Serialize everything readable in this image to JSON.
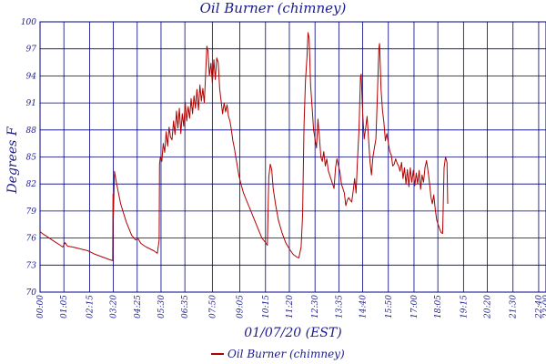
{
  "colors": {
    "line": "#b00000",
    "grid": "#000080",
    "text": "#1a1a8c"
  },
  "chart_data": {
    "type": "line",
    "title": "Oil Burner (chimney)",
    "xlabel": "01/07/20 (EST)",
    "ylabel": "Degrees F",
    "x_unit": "minutes",
    "xlim": [
      0,
      1380
    ],
    "ylim": [
      70,
      100
    ],
    "y_ticks": [
      {
        "value": 70,
        "label": "70"
      },
      {
        "value": 73,
        "label": "73"
      },
      {
        "value": 76,
        "label": "76"
      },
      {
        "value": 79,
        "label": "79"
      },
      {
        "value": 82,
        "label": "82"
      },
      {
        "value": 85,
        "label": "85"
      },
      {
        "value": 88,
        "label": "88"
      },
      {
        "value": 91,
        "label": "91"
      },
      {
        "value": 94,
        "label": "94"
      },
      {
        "value": 97,
        "label": "97"
      },
      {
        "value": 100,
        "label": "100"
      }
    ],
    "x_ticks": [
      {
        "value": 0,
        "label": "00:00"
      },
      {
        "value": 65,
        "label": "01:05"
      },
      {
        "value": 135,
        "label": "02:15"
      },
      {
        "value": 200,
        "label": "03:20"
      },
      {
        "value": 265,
        "label": "04:25"
      },
      {
        "value": 330,
        "label": "05:30"
      },
      {
        "value": 395,
        "label": "06:35"
      },
      {
        "value": 470,
        "label": "07:50"
      },
      {
        "value": 545,
        "label": "09:05"
      },
      {
        "value": 615,
        "label": "10:15"
      },
      {
        "value": 680,
        "label": "11:20"
      },
      {
        "value": 750,
        "label": "12:30"
      },
      {
        "value": 815,
        "label": "13:35"
      },
      {
        "value": 880,
        "label": "14:40"
      },
      {
        "value": 950,
        "label": "15:50"
      },
      {
        "value": 1020,
        "label": "17:00"
      },
      {
        "value": 1085,
        "label": "18:05"
      },
      {
        "value": 1155,
        "label": "19:15"
      },
      {
        "value": 1220,
        "label": "20:20"
      },
      {
        "value": 1290,
        "label": "21:30"
      },
      {
        "value": 1360,
        "label": "22:40"
      },
      {
        "value": 1380,
        "label": "23:00"
      }
    ],
    "grid": true,
    "legend_position": "bottom-center",
    "series": [
      {
        "name": "Oil Burner (chimney)",
        "points": [
          [
            0,
            76.7
          ],
          [
            10,
            76.4
          ],
          [
            25,
            76.0
          ],
          [
            40,
            75.6
          ],
          [
            55,
            75.2
          ],
          [
            62,
            75.0
          ],
          [
            68,
            75.5
          ],
          [
            75,
            75.1
          ],
          [
            90,
            75.0
          ],
          [
            110,
            74.8
          ],
          [
            130,
            74.6
          ],
          [
            150,
            74.2
          ],
          [
            170,
            73.9
          ],
          [
            190,
            73.6
          ],
          [
            198,
            73.5
          ],
          [
            199,
            80.9
          ],
          [
            200,
            78.5
          ],
          [
            203,
            83.4
          ],
          [
            208,
            82.2
          ],
          [
            220,
            79.8
          ],
          [
            235,
            77.8
          ],
          [
            250,
            76.3
          ],
          [
            260,
            75.8
          ],
          [
            268,
            75.9
          ],
          [
            275,
            75.4
          ],
          [
            290,
            75.0
          ],
          [
            310,
            74.6
          ],
          [
            320,
            74.3
          ],
          [
            325,
            75.8
          ],
          [
            326,
            84.2
          ],
          [
            328,
            85.0
          ],
          [
            332,
            84.5
          ],
          [
            336,
            86.5
          ],
          [
            340,
            85.5
          ],
          [
            344,
            87.8
          ],
          [
            348,
            86.2
          ],
          [
            352,
            88.3
          ],
          [
            356,
            87.2
          ],
          [
            360,
            86.9
          ],
          [
            364,
            89.0
          ],
          [
            368,
            87.5
          ],
          [
            372,
            90.1
          ],
          [
            376,
            88.2
          ],
          [
            380,
            90.4
          ],
          [
            384,
            87.6
          ],
          [
            388,
            89.8
          ],
          [
            392,
            88.4
          ],
          [
            396,
            91.1
          ],
          [
            400,
            89.0
          ],
          [
            404,
            90.6
          ],
          [
            408,
            89.3
          ],
          [
            412,
            91.5
          ],
          [
            416,
            89.8
          ],
          [
            420,
            91.8
          ],
          [
            424,
            90.4
          ],
          [
            428,
            92.5
          ],
          [
            432,
            90.2
          ],
          [
            436,
            93.0
          ],
          [
            440,
            91.2
          ],
          [
            444,
            92.6
          ],
          [
            448,
            91.0
          ],
          [
            452,
            94.5
          ],
          [
            455,
            97.3
          ],
          [
            458,
            96.8
          ],
          [
            462,
            94.0
          ],
          [
            466,
            95.4
          ],
          [
            470,
            93.2
          ],
          [
            474,
            95.8
          ],
          [
            478,
            93.6
          ],
          [
            482,
            96.0
          ],
          [
            486,
            95.5
          ],
          [
            490,
            92.6
          ],
          [
            494,
            91.2
          ],
          [
            498,
            89.8
          ],
          [
            502,
            91.0
          ],
          [
            506,
            90.0
          ],
          [
            510,
            90.8
          ],
          [
            514,
            89.5
          ],
          [
            518,
            89.0
          ],
          [
            522,
            88.0
          ],
          [
            526,
            86.8
          ],
          [
            530,
            86.0
          ],
          [
            534,
            85.0
          ],
          [
            538,
            84.0
          ],
          [
            542,
            83.0
          ],
          [
            548,
            82.0
          ],
          [
            555,
            81.0
          ],
          [
            565,
            80.0
          ],
          [
            575,
            79.0
          ],
          [
            585,
            78.0
          ],
          [
            595,
            77.0
          ],
          [
            605,
            76.0
          ],
          [
            615,
            75.5
          ],
          [
            620,
            75.2
          ],
          [
            624,
            82.8
          ],
          [
            628,
            84.2
          ],
          [
            632,
            83.6
          ],
          [
            636,
            81.5
          ],
          [
            642,
            79.8
          ],
          [
            650,
            78.0
          ],
          [
            660,
            76.6
          ],
          [
            670,
            75.5
          ],
          [
            680,
            74.8
          ],
          [
            690,
            74.2
          ],
          [
            700,
            73.9
          ],
          [
            706,
            73.8
          ],
          [
            712,
            75.0
          ],
          [
            716,
            78.5
          ],
          [
            720,
            88.5
          ],
          [
            724,
            93.5
          ],
          [
            728,
            96.0
          ],
          [
            731,
            98.8
          ],
          [
            734,
            98.2
          ],
          [
            738,
            93.0
          ],
          [
            742,
            90.5
          ],
          [
            746,
            88.0
          ],
          [
            750,
            87.0
          ],
          [
            754,
            86.0
          ],
          [
            758,
            89.2
          ],
          [
            762,
            87.2
          ],
          [
            766,
            85.0
          ],
          [
            770,
            84.5
          ],
          [
            774,
            85.6
          ],
          [
            778,
            84.0
          ],
          [
            782,
            84.8
          ],
          [
            786,
            83.5
          ],
          [
            790,
            83.0
          ],
          [
            794,
            82.5
          ],
          [
            798,
            82.0
          ],
          [
            802,
            81.5
          ],
          [
            806,
            83.8
          ],
          [
            810,
            84.8
          ],
          [
            814,
            84.0
          ],
          [
            818,
            83.3
          ],
          [
            822,
            82.0
          ],
          [
            826,
            81.5
          ],
          [
            830,
            81.0
          ],
          [
            834,
            79.6
          ],
          [
            838,
            80.2
          ],
          [
            842,
            80.5
          ],
          [
            846,
            80.2
          ],
          [
            850,
            80.0
          ],
          [
            854,
            81.2
          ],
          [
            858,
            82.6
          ],
          [
            862,
            81.0
          ],
          [
            866,
            84.8
          ],
          [
            870,
            88.0
          ],
          [
            874,
            93.8
          ],
          [
            876,
            94.2
          ],
          [
            880,
            89.8
          ],
          [
            884,
            87.0
          ],
          [
            888,
            88.2
          ],
          [
            892,
            89.5
          ],
          [
            896,
            87.0
          ],
          [
            900,
            84.5
          ],
          [
            904,
            83.0
          ],
          [
            908,
            85.0
          ],
          [
            912,
            86.0
          ],
          [
            916,
            87.0
          ],
          [
            920,
            91.8
          ],
          [
            924,
            97.0
          ],
          [
            926,
            97.6
          ],
          [
            930,
            92.6
          ],
          [
            934,
            90.2
          ],
          [
            938,
            88.8
          ],
          [
            942,
            86.8
          ],
          [
            946,
            87.6
          ],
          [
            950,
            86.5
          ],
          [
            954,
            85.6
          ],
          [
            958,
            85.2
          ],
          [
            962,
            84.0
          ],
          [
            966,
            84.2
          ],
          [
            970,
            84.8
          ],
          [
            974,
            84.3
          ],
          [
            978,
            84.0
          ],
          [
            982,
            83.4
          ],
          [
            986,
            84.4
          ],
          [
            990,
            82.6
          ],
          [
            994,
            83.8
          ],
          [
            998,
            82.0
          ],
          [
            1002,
            83.6
          ],
          [
            1006,
            81.7
          ],
          [
            1010,
            83.8
          ],
          [
            1014,
            82.2
          ],
          [
            1018,
            83.5
          ],
          [
            1022,
            81.8
          ],
          [
            1026,
            83.2
          ],
          [
            1030,
            82.0
          ],
          [
            1034,
            83.5
          ],
          [
            1038,
            81.4
          ],
          [
            1042,
            83.0
          ],
          [
            1046,
            82.2
          ],
          [
            1050,
            83.8
          ],
          [
            1054,
            84.6
          ],
          [
            1058,
            83.5
          ],
          [
            1062,
            82.2
          ],
          [
            1066,
            80.6
          ],
          [
            1070,
            79.8
          ],
          [
            1074,
            80.8
          ],
          [
            1078,
            79.2
          ],
          [
            1082,
            78.0
          ],
          [
            1086,
            77.5
          ],
          [
            1090,
            77.0
          ],
          [
            1094,
            76.6
          ],
          [
            1098,
            76.5
          ],
          [
            1102,
            83.8
          ],
          [
            1106,
            85.0
          ],
          [
            1110,
            84.4
          ],
          [
            1112,
            79.8
          ]
        ]
      }
    ]
  }
}
